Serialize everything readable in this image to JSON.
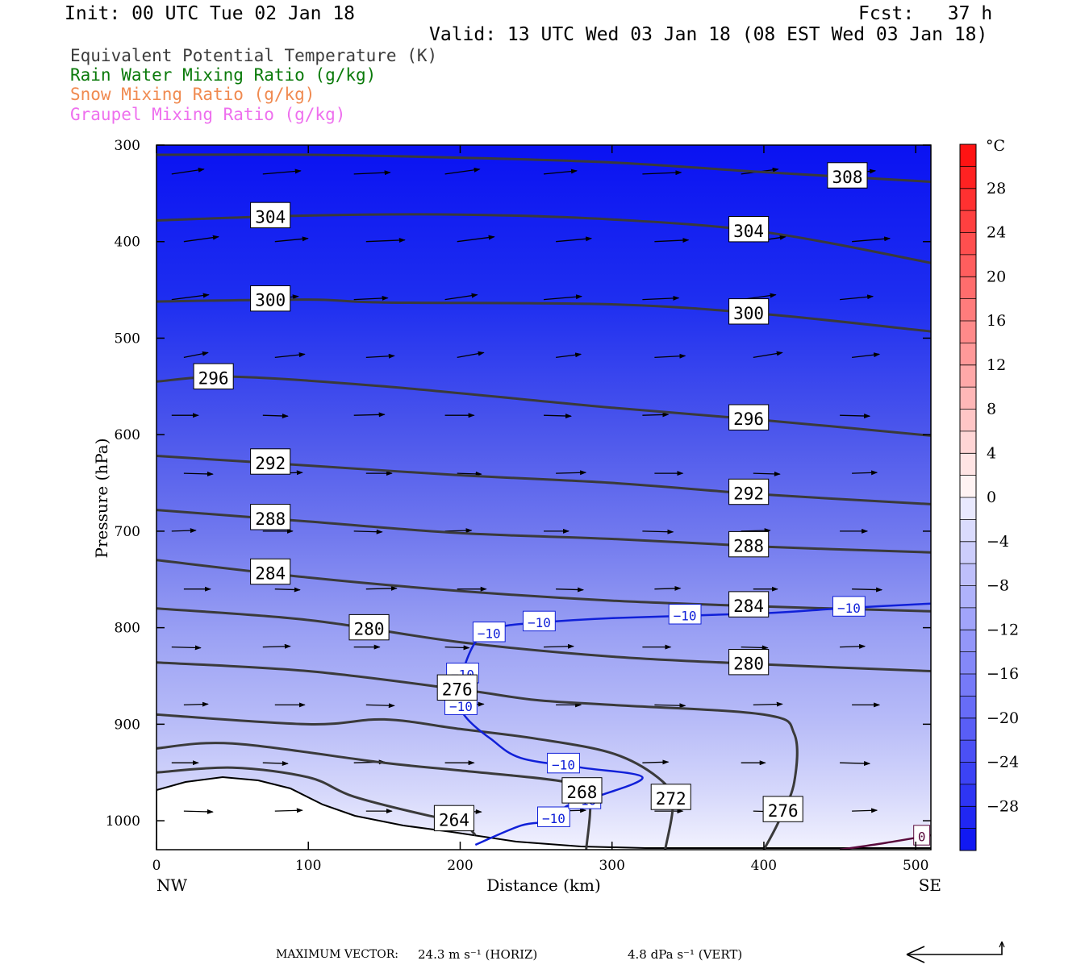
{
  "header": {
    "init": "Init: 00 UTC Tue 02 Jan 18",
    "fcst": "Fcst:   37 h",
    "valid": "Valid: 13 UTC Wed 03 Jan 18 (08 EST Wed 03 Jan 18)"
  },
  "legend": [
    {
      "text": "Equivalent Potential Temperature (K)",
      "color": "#3c3c3c"
    },
    {
      "text": "Rain Water Mixing Ratio (g/kg)",
      "color": "#0a7a0a"
    },
    {
      "text": "Snow Mixing Ratio (g/kg)",
      "color": "#f08a50"
    },
    {
      "text": "Graupel Mixing Ratio (g/kg)",
      "color": "#ee6fee"
    }
  ],
  "footer": {
    "label": "MAXIMUM VECTOR:",
    "horiz": "24.3 m s⁻¹ (HORIZ)",
    "vert": "4.8 dPa s⁻¹ (VERT)"
  },
  "chart_data": {
    "type": "cross-section",
    "xlabel": "Distance (km)",
    "ylabel": "Pressure (hPa)",
    "x_ticks": [
      "0",
      "100",
      "200",
      "300",
      "400",
      "500"
    ],
    "x_tick_values": [
      0,
      100,
      200,
      300,
      400,
      500
    ],
    "y_ticks": [
      "300",
      "400",
      "500",
      "600",
      "700",
      "800",
      "900",
      "1000"
    ],
    "y_tick_values": [
      300,
      400,
      500,
      600,
      700,
      800,
      900,
      1000
    ],
    "xlim": [
      0,
      510
    ],
    "ylim": [
      300,
      1030
    ],
    "left_endpoint": "NW",
    "right_endpoint": "SE",
    "colorbar": {
      "unit": "°C",
      "tick_labels": [
        "28",
        "24",
        "20",
        "16",
        "12",
        "8",
        "4",
        "0",
        "−4",
        "−8",
        "−12",
        "−16",
        "−20",
        "−24",
        "−28"
      ],
      "tick_values": [
        28,
        24,
        20,
        16,
        12,
        8,
        4,
        0,
        -4,
        -8,
        -12,
        -16,
        -20,
        -24,
        -28
      ]
    },
    "theta_e_contours": [
      {
        "value": 308,
        "points": [
          [
            0,
            310
          ],
          [
            100,
            310
          ],
          [
            200,
            313
          ],
          [
            300,
            318
          ],
          [
            400,
            328
          ],
          [
            510,
            338
          ]
        ]
      },
      {
        "value": 304,
        "points": [
          [
            0,
            378
          ],
          [
            100,
            373
          ],
          [
            200,
            372
          ],
          [
            300,
            377
          ],
          [
            400,
            390
          ],
          [
            510,
            422
          ]
        ]
      },
      {
        "value": 300,
        "points": [
          [
            0,
            462
          ],
          [
            100,
            460
          ],
          [
            150,
            463
          ],
          [
            300,
            465
          ],
          [
            400,
            475
          ],
          [
            510,
            493
          ]
        ]
      },
      {
        "value": 296,
        "points": [
          [
            0,
            545
          ],
          [
            50,
            540
          ],
          [
            150,
            550
          ],
          [
            300,
            572
          ],
          [
            400,
            585
          ],
          [
            510,
            601
          ]
        ]
      },
      {
        "value": 292,
        "points": [
          [
            0,
            622
          ],
          [
            100,
            632
          ],
          [
            200,
            642
          ],
          [
            300,
            650
          ],
          [
            400,
            662
          ],
          [
            510,
            672
          ]
        ]
      },
      {
        "value": 288,
        "points": [
          [
            0,
            678
          ],
          [
            100,
            690
          ],
          [
            200,
            702
          ],
          [
            300,
            708
          ],
          [
            400,
            716
          ],
          [
            510,
            722
          ]
        ]
      },
      {
        "value": 284,
        "points": [
          [
            0,
            730
          ],
          [
            100,
            748
          ],
          [
            200,
            762
          ],
          [
            300,
            772
          ],
          [
            400,
            778
          ],
          [
            510,
            783
          ]
        ]
      },
      {
        "value": 280,
        "points": [
          [
            0,
            780
          ],
          [
            100,
            792
          ],
          [
            200,
            815
          ],
          [
            300,
            830
          ],
          [
            400,
            838
          ],
          [
            510,
            845
          ]
        ]
      },
      {
        "value": 276,
        "points": [
          [
            0,
            836
          ],
          [
            100,
            845
          ],
          [
            200,
            864
          ],
          [
            250,
            875
          ],
          [
            300,
            880
          ],
          [
            400,
            890
          ],
          [
            420,
            910
          ],
          [
            420,
            960
          ],
          [
            410,
            1000
          ],
          [
            400,
            1030
          ]
        ]
      },
      {
        "value": 272,
        "points": [
          [
            0,
            890
          ],
          [
            100,
            900
          ],
          [
            150,
            895
          ],
          [
            200,
            905
          ],
          [
            250,
            915
          ],
          [
            300,
            930
          ],
          [
            330,
            955
          ],
          [
            340,
            980
          ],
          [
            335,
            1030
          ]
        ]
      },
      {
        "value": 268,
        "points": [
          [
            0,
            925
          ],
          [
            50,
            920
          ],
          [
            150,
            940
          ],
          [
            200,
            948
          ],
          [
            270,
            960
          ],
          [
            285,
            975
          ],
          [
            283,
            1030
          ]
        ]
      },
      {
        "value": 264,
        "points": [
          [
            0,
            950
          ],
          [
            50,
            945
          ],
          [
            100,
            955
          ],
          [
            130,
            975
          ],
          [
            180,
            995
          ],
          [
            200,
            1000
          ],
          [
            210,
            1015
          ]
        ]
      }
    ],
    "temperature_contours": [
      {
        "value": -10,
        "points": [
          [
            210,
            1025
          ],
          [
            240,
            1005
          ],
          [
            260,
            1000
          ],
          [
            270,
            985
          ],
          [
            290,
            975
          ],
          [
            320,
            955
          ],
          [
            280,
            945
          ],
          [
            240,
            935
          ],
          [
            220,
            915
          ],
          [
            205,
            895
          ],
          [
            200,
            880
          ],
          [
            200,
            855
          ],
          [
            210,
            815
          ],
          [
            225,
            800
          ],
          [
            250,
            795
          ],
          [
            300,
            790
          ],
          [
            400,
            785
          ],
          [
            450,
            780
          ],
          [
            510,
            775
          ]
        ]
      },
      {
        "value": 0,
        "points": [
          [
            450,
            1030
          ],
          [
            480,
            1023
          ],
          [
            510,
            1015
          ]
        ]
      }
    ]
  }
}
